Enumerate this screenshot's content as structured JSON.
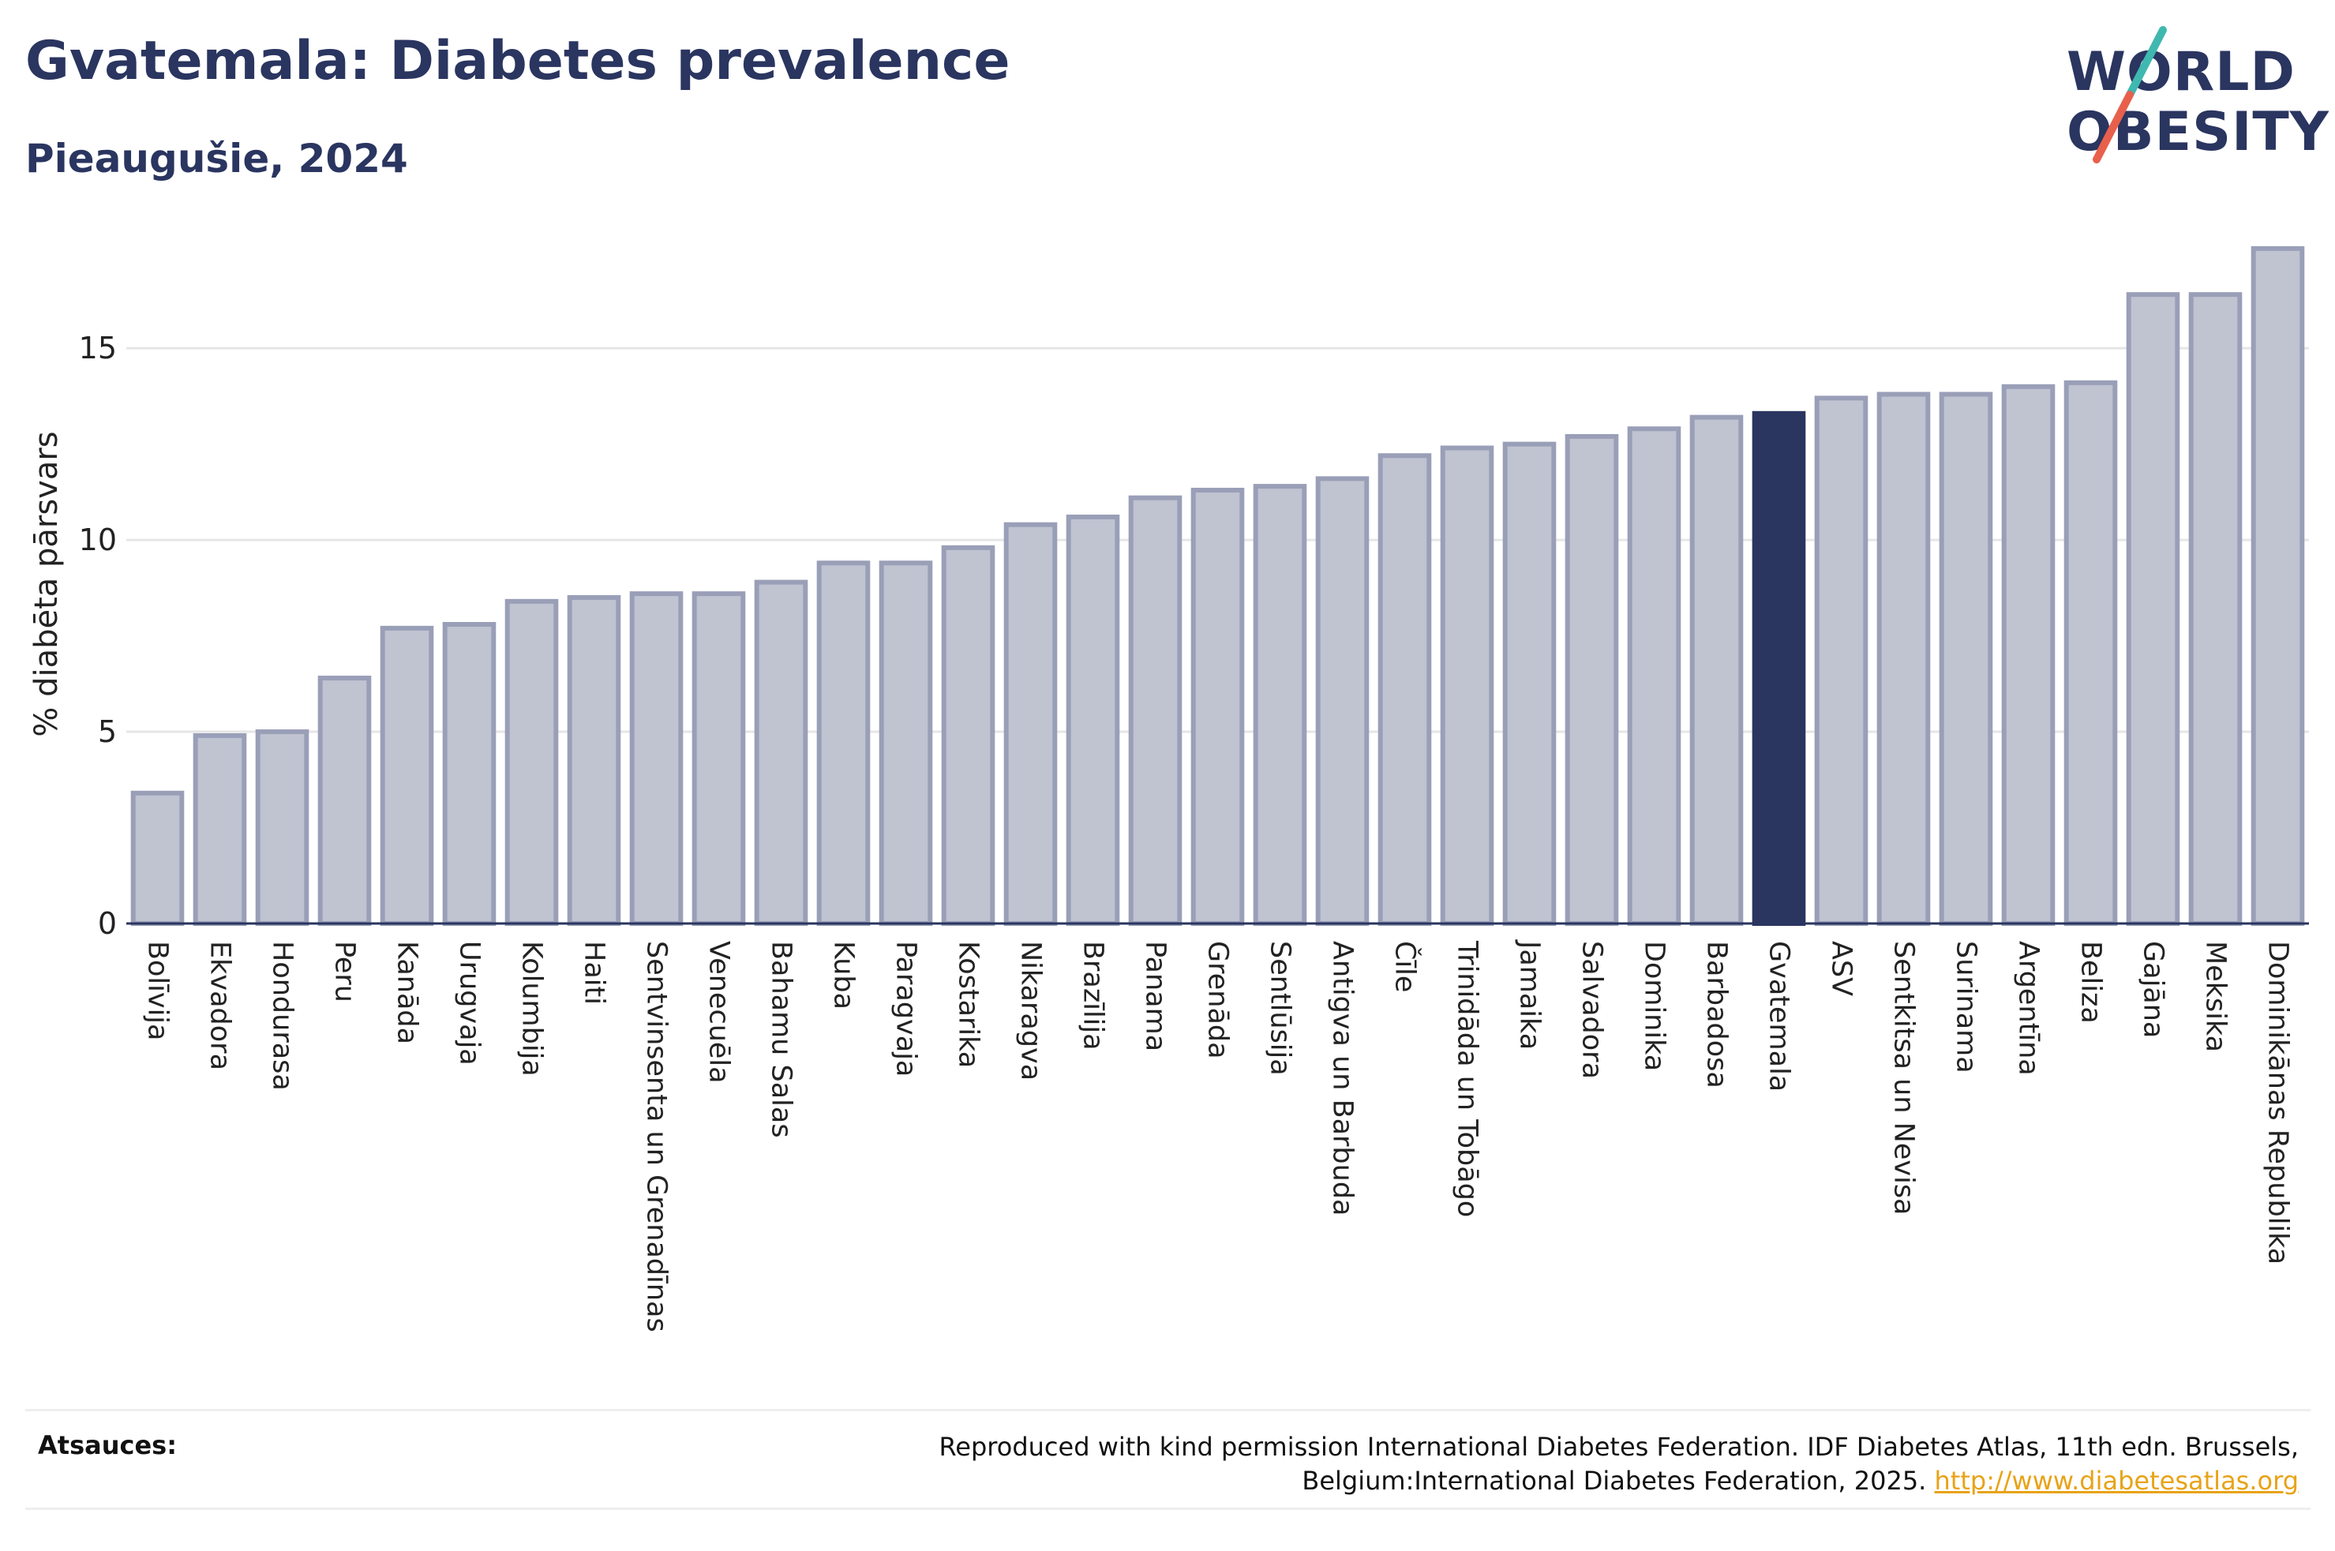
{
  "header": {
    "title": "Gvatemala: Diabetes prevalence",
    "subtitle": "Pieaugušie, 2024"
  },
  "logo": {
    "line1": "WORLD",
    "line2": "OBESITY",
    "colors": {
      "text": "#2a3560",
      "slash_top": "#3fb8b0",
      "slash_bottom": "#e8604c"
    }
  },
  "colors": {
    "bar_default_fill": "#c0c3d0",
    "bar_default_stroke": "#9a9fb8",
    "bar_highlight": "#2a3560",
    "gridline": "#e6e6e6",
    "axis": "#2a3560"
  },
  "chart_data": {
    "type": "bar",
    "ylabel": "% diabēta pārsvars",
    "ylim": [
      0,
      17.7
    ],
    "yticks": [
      0,
      5,
      10,
      15
    ],
    "grid": true,
    "highlight": "Gvatemala",
    "categories": [
      "Bolīvija",
      "Ekvadora",
      "Hondurasa",
      "Peru",
      "Kanāda",
      "Urugvaja",
      "Kolumbija",
      "Haiti",
      "Sentvinsenta un Grenadīnas",
      "Venecuēla",
      "Bahamu Salas",
      "Kuba",
      "Paragvaja",
      "Kostarika",
      "Nikaragva",
      "Brazīlija",
      "Panama",
      "Grenāda",
      "Sentlūsija",
      "Antigva un Barbuda",
      "Čīle",
      "Trinidāda un Tobāgo",
      "Jamaika",
      "Salvadora",
      "Dominika",
      "Barbadosa",
      "Gvatemala",
      "ASV",
      "Sentkitsa un Nevisa",
      "Surinama",
      "Argentīna",
      "Beliza",
      "Gajāna",
      "Meksika",
      "Dominikānas Republika"
    ],
    "values": [
      3.4,
      4.9,
      5.0,
      6.4,
      7.7,
      7.8,
      8.4,
      8.5,
      8.6,
      8.6,
      8.9,
      9.4,
      9.4,
      9.8,
      10.4,
      10.6,
      11.1,
      11.3,
      11.4,
      11.6,
      12.2,
      12.4,
      12.5,
      12.7,
      12.9,
      13.2,
      13.3,
      13.7,
      13.8,
      13.8,
      14.0,
      14.1,
      16.4,
      16.4,
      17.6
    ]
  },
  "footer": {
    "sources_label": "Atsauces:",
    "sources_text": "Reproduced with kind permission International Diabetes Federation. IDF Diabetes Atlas, 11th edn. Brussels, Belgium:International Diabetes Federation, 2025.",
    "sources_link": "http://www.diabetesatlas.org"
  }
}
